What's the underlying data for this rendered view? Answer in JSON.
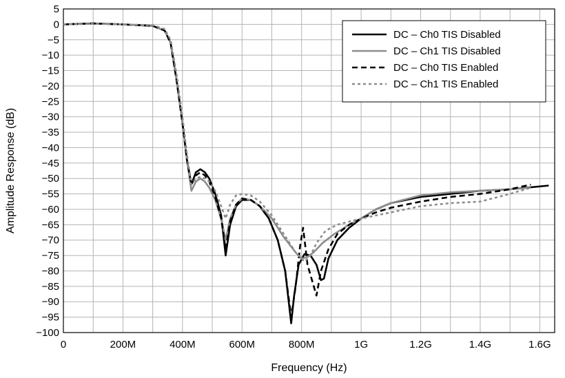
{
  "chart_data": {
    "type": "line",
    "title": "",
    "xlabel": "Frequency (Hz)",
    "ylabel": "Amplitude Response (dB)",
    "xlim": [
      0,
      1650000000
    ],
    "ylim": [
      -100,
      5
    ],
    "x_ticks": [
      {
        "value": 0,
        "label": "0"
      },
      {
        "value": 200000000,
        "label": "200M"
      },
      {
        "value": 400000000,
        "label": "400M"
      },
      {
        "value": 600000000,
        "label": "600M"
      },
      {
        "value": 800000000,
        "label": "800M"
      },
      {
        "value": 1000000000,
        "label": "1G"
      },
      {
        "value": 1200000000,
        "label": "1.2G"
      },
      {
        "value": 1400000000,
        "label": "1.4G"
      },
      {
        "value": 1600000000,
        "label": "1.6G"
      }
    ],
    "y_ticks": [
      {
        "value": 5,
        "label": "5"
      },
      {
        "value": 0,
        "label": "0"
      },
      {
        "value": -5,
        "label": "−5"
      },
      {
        "value": -10,
        "label": "−10"
      },
      {
        "value": -15,
        "label": "−15"
      },
      {
        "value": -20,
        "label": "−20"
      },
      {
        "value": -25,
        "label": "−25"
      },
      {
        "value": -30,
        "label": "−30"
      },
      {
        "value": -35,
        "label": "−35"
      },
      {
        "value": -40,
        "label": "−40"
      },
      {
        "value": -45,
        "label": "−45"
      },
      {
        "value": -50,
        "label": "−50"
      },
      {
        "value": -55,
        "label": "−55"
      },
      {
        "value": -60,
        "label": "−60"
      },
      {
        "value": -65,
        "label": "−65"
      },
      {
        "value": -70,
        "label": "−70"
      },
      {
        "value": -75,
        "label": "−75"
      },
      {
        "value": -80,
        "label": "−80"
      },
      {
        "value": -85,
        "label": "−85"
      },
      {
        "value": -90,
        "label": "−90"
      },
      {
        "value": -95,
        "label": "−95"
      },
      {
        "value": -100,
        "label": "−100"
      }
    ],
    "x_grid_step": 100000000,
    "y_grid_step": 5,
    "grid": true,
    "legend_position": "top-right",
    "series": [
      {
        "name": "DC – Ch0 TIS Disabled",
        "color": "#000000",
        "dash": "solid",
        "x": [
          0,
          100000000,
          200000000,
          300000000,
          340000000,
          360000000,
          380000000,
          400000000,
          415000000,
          430000000,
          445000000,
          460000000,
          475000000,
          490000000,
          510000000,
          530000000,
          545000000,
          560000000,
          580000000,
          600000000,
          630000000,
          660000000,
          690000000,
          720000000,
          745000000,
          765000000,
          775000000,
          790000000,
          810000000,
          830000000,
          850000000,
          865000000,
          875000000,
          890000000,
          920000000,
          960000000,
          1000000000,
          1050000000,
          1100000000,
          1200000000,
          1300000000,
          1400000000,
          1500000000,
          1630000000
        ],
        "y": [
          0,
          0.3,
          0,
          -0.5,
          -2,
          -6,
          -18,
          -32,
          -44,
          -52,
          -48,
          -47,
          -48,
          -50,
          -55,
          -62,
          -75,
          -65,
          -59,
          -57,
          -57,
          -59,
          -63,
          -70,
          -80,
          -97,
          -88,
          -78,
          -74.5,
          -75,
          -78,
          -83,
          -82.5,
          -76,
          -70,
          -66,
          -63,
          -60,
          -58,
          -56,
          -55,
          -54,
          -53.5,
          -52.3
        ]
      },
      {
        "name": "DC – Ch1 TIS Disabled",
        "color": "#8c8c8c",
        "dash": "solid",
        "x": [
          0,
          100000000,
          200000000,
          300000000,
          340000000,
          360000000,
          380000000,
          400000000,
          415000000,
          430000000,
          445000000,
          460000000,
          475000000,
          490000000,
          510000000,
          530000000,
          545000000,
          560000000,
          580000000,
          600000000,
          630000000,
          660000000,
          700000000,
          740000000,
          780000000,
          800000000,
          820000000,
          840000000,
          870000000,
          910000000,
          960000000,
          1000000000,
          1050000000,
          1100000000,
          1200000000,
          1300000000,
          1400000000,
          1500000000,
          1570000000
        ],
        "y": [
          0,
          0.2,
          0,
          -0.5,
          -2,
          -6,
          -18,
          -32,
          -44,
          -54,
          -51,
          -50,
          -51,
          -53,
          -57,
          -63,
          -70,
          -63,
          -58.5,
          -56.5,
          -57,
          -59,
          -63,
          -69,
          -74,
          -76,
          -75.5,
          -74,
          -71,
          -68,
          -65,
          -63,
          -60,
          -58,
          -55.5,
          -54.5,
          -54,
          -53.5,
          -53
        ]
      },
      {
        "name": "DC – Ch0 TIS Enabled",
        "color": "#000000",
        "dash": "8,5",
        "x": [
          0,
          100000000,
          200000000,
          300000000,
          340000000,
          360000000,
          380000000,
          400000000,
          415000000,
          430000000,
          445000000,
          460000000,
          475000000,
          490000000,
          510000000,
          530000000,
          545000000,
          560000000,
          580000000,
          600000000,
          630000000,
          660000000,
          690000000,
          720000000,
          745000000,
          765000000,
          780000000,
          795000000,
          805000000,
          820000000,
          835000000,
          850000000,
          865000000,
          890000000,
          920000000,
          960000000,
          1000000000,
          1050000000,
          1100000000,
          1200000000,
          1300000000,
          1400000000,
          1500000000,
          1570000000
        ],
        "y": [
          0,
          0.3,
          0,
          -0.5,
          -2,
          -6,
          -18,
          -32,
          -44,
          -52,
          -49,
          -48,
          -49,
          -51,
          -56,
          -63,
          -73,
          -64,
          -58.5,
          -56.5,
          -57,
          -59,
          -63,
          -70,
          -80,
          -95,
          -85,
          -72,
          -66,
          -78,
          -83,
          -88,
          -80,
          -73,
          -68,
          -65,
          -63,
          -61,
          -59.5,
          -57.5,
          -56,
          -55,
          -53.5,
          -52
        ]
      },
      {
        "name": "DC – Ch1 TIS Enabled",
        "color": "#8c8c8c",
        "dash": "4,4",
        "x": [
          0,
          100000000,
          200000000,
          300000000,
          340000000,
          360000000,
          380000000,
          400000000,
          415000000,
          430000000,
          445000000,
          460000000,
          475000000,
          490000000,
          510000000,
          530000000,
          545000000,
          560000000,
          580000000,
          600000000,
          630000000,
          660000000,
          700000000,
          740000000,
          780000000,
          810000000,
          830000000,
          850000000,
          880000000,
          920000000,
          960000000,
          1000000000,
          1050000000,
          1100000000,
          1200000000,
          1300000000,
          1400000000,
          1500000000,
          1570000000
        ],
        "y": [
          0,
          0.2,
          0,
          -0.3,
          -1.5,
          -5,
          -16,
          -30,
          -42,
          -52,
          -50,
          -49.5,
          -50,
          -51,
          -54,
          -59,
          -63,
          -58.5,
          -55.5,
          -55,
          -55.5,
          -57.5,
          -62,
          -68,
          -74,
          -77,
          -75,
          -71,
          -67,
          -65,
          -64,
          -63,
          -62,
          -61,
          -59,
          -58,
          -57.5,
          -55,
          -53
        ]
      }
    ]
  }
}
